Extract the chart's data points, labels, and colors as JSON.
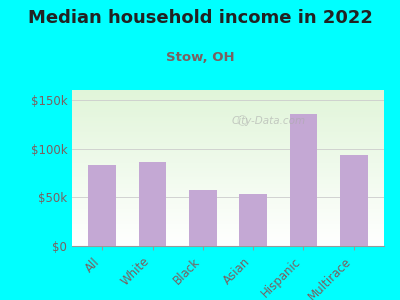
{
  "title": "Median household income in 2022",
  "subtitle": "Stow, OH",
  "categories": [
    "All",
    "White",
    "Black",
    "Asian",
    "Hispanic",
    "Multirace"
  ],
  "values": [
    83000,
    86000,
    57000,
    53000,
    135000,
    93000
  ],
  "bar_color": "#c4a8d4",
  "background_outer": "#00FFFF",
  "title_color": "#222222",
  "subtitle_color": "#7a6060",
  "tick_label_color": "#7a6060",
  "ylim": [
    0,
    160000
  ],
  "yticks": [
    0,
    50000,
    100000,
    150000
  ],
  "ytick_labels": [
    "$0",
    "$50k",
    "$100k",
    "$150k"
  ],
  "watermark": "City-Data.com",
  "title_fontsize": 13,
  "subtitle_fontsize": 9.5
}
